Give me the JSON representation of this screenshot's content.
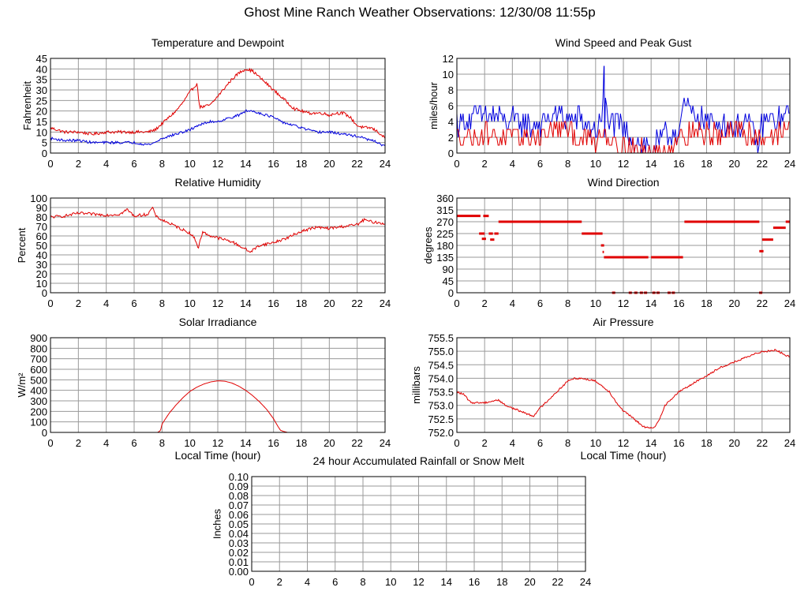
{
  "page": {
    "title": "Ghost Mine Ranch Weather Observations: 12/30/08 11:55p"
  },
  "colors": {
    "red": "#e00000",
    "blue": "#0000dd",
    "grid": "#9a9a9a",
    "axis": "#000000"
  },
  "chart_data": [
    {
      "id": "temperature",
      "type": "line",
      "title": "Temperature and Dewpoint",
      "xlabel": "",
      "ylabel": "Fahrenheit",
      "xlim": [
        0,
        24
      ],
      "ylim": [
        0,
        45
      ],
      "xticks": [
        "0",
        "2",
        "4",
        "6",
        "8",
        "10",
        "12",
        "14",
        "16",
        "18",
        "20",
        "22",
        "24"
      ],
      "yticks": [
        "0",
        "5",
        "10",
        "15",
        "20",
        "25",
        "30",
        "35",
        "40",
        "45"
      ],
      "series": [
        {
          "name": "Temperature",
          "color": "red",
          "x": [
            0,
            0.5,
            1,
            2,
            3,
            4,
            5,
            6,
            7,
            7.5,
            8,
            8.5,
            9,
            9.5,
            10,
            10.5,
            10.7,
            11,
            11.5,
            12,
            12.5,
            13,
            13.5,
            14,
            14.5,
            15,
            15.5,
            16,
            16.5,
            17,
            17.5,
            18,
            18.5,
            19,
            19.5,
            20,
            20.5,
            21,
            21.5,
            22,
            22.5,
            23,
            23.5,
            24
          ],
          "y": [
            12,
            11,
            10,
            10,
            9,
            10,
            10,
            10,
            10,
            11,
            14,
            17,
            20,
            24,
            29,
            33,
            22,
            22,
            23,
            27,
            31,
            35,
            38,
            40,
            39,
            36,
            33,
            30,
            27,
            24,
            21,
            20,
            19,
            19,
            19,
            18,
            19,
            19,
            17,
            13,
            12,
            12,
            10,
            7
          ],
          "noise": 0.7
        },
        {
          "name": "Dewpoint",
          "color": "blue",
          "x": [
            0,
            1,
            2,
            3,
            4,
            5,
            6,
            7,
            7.5,
            8,
            8.5,
            9,
            9.5,
            10,
            10.5,
            11,
            11.5,
            12,
            12.5,
            13,
            13.5,
            14,
            14.5,
            15,
            15.5,
            16,
            16.5,
            17,
            17.5,
            18,
            19,
            20,
            21,
            22,
            23,
            23.5,
            24
          ],
          "y": [
            7,
            6,
            6,
            5,
            5,
            5,
            5,
            4,
            5,
            7,
            8,
            9,
            10,
            11,
            13,
            14,
            15,
            15,
            16,
            17,
            18,
            20,
            20,
            19,
            18,
            17,
            15,
            14,
            13,
            12,
            10,
            10,
            9,
            8,
            6,
            5,
            3
          ],
          "noise": 0.6
        }
      ]
    },
    {
      "id": "wind-speed",
      "type": "line",
      "title": "Wind Speed and Peak Gust",
      "xlabel": "",
      "ylabel": "miles/hour",
      "xlim": [
        0,
        24
      ],
      "ylim": [
        0,
        12
      ],
      "xticks": [
        "0",
        "2",
        "4",
        "6",
        "8",
        "10",
        "12",
        "14",
        "16",
        "18",
        "20",
        "22",
        "24"
      ],
      "yticks": [
        "0",
        "2",
        "4",
        "6",
        "8",
        "10",
        "12"
      ],
      "series": [
        {
          "name": "Peak Gust",
          "color": "blue",
          "x": [
            0,
            1,
            2,
            3,
            4,
            5,
            6,
            7,
            8,
            9,
            10,
            10.5,
            10.6,
            10.8,
            11,
            12,
            13,
            14,
            15,
            16,
            16.5,
            17,
            18,
            19,
            20,
            21,
            21.8,
            22,
            23,
            24
          ],
          "y": [
            4,
            4,
            5,
            4.5,
            4,
            3.5,
            3.5,
            5,
            4.5,
            4,
            3,
            4,
            11,
            5,
            4,
            3,
            1.5,
            0.5,
            2,
            3,
            6,
            5,
            4,
            4,
            3.5,
            4,
            1,
            4,
            4,
            5
          ],
          "mode": "jitter",
          "step": 0.09,
          "amp": 1.6
        },
        {
          "name": "Wind Speed",
          "color": "red",
          "x": [
            0,
            1,
            2,
            3,
            4,
            5,
            6,
            7,
            8,
            9,
            10,
            10.6,
            11,
            12,
            13,
            14,
            15,
            16,
            17,
            18,
            19,
            20,
            21,
            22,
            23,
            24
          ],
          "y": [
            2,
            2,
            2.5,
            2,
            2,
            2,
            2,
            3,
            3,
            2,
            1.5,
            3,
            2,
            1,
            0.5,
            0,
            0.5,
            2,
            3,
            2.5,
            2.5,
            2.5,
            2.5,
            2,
            2.5,
            3
          ],
          "mode": "jitter",
          "step": 0.09,
          "amp": 1.4
        }
      ]
    },
    {
      "id": "humidity",
      "type": "line",
      "title": "Relative Humidity",
      "xlabel": "",
      "ylabel": "Percent",
      "xlim": [
        0,
        24
      ],
      "ylim": [
        0,
        100
      ],
      "xticks": [
        "0",
        "2",
        "4",
        "6",
        "8",
        "10",
        "12",
        "14",
        "16",
        "18",
        "20",
        "22",
        "24"
      ],
      "yticks": [
        "0",
        "10",
        "20",
        "30",
        "40",
        "50",
        "60",
        "70",
        "80",
        "90",
        "100"
      ],
      "series": [
        {
          "name": "Relative Humidity",
          "color": "red",
          "x": [
            0,
            1,
            2,
            3,
            4,
            5,
            5.5,
            6,
            7,
            7.3,
            7.6,
            8,
            9,
            10,
            10.4,
            10.6,
            10.9,
            11.5,
            12,
            13,
            13.5,
            14,
            14.3,
            15,
            16,
            17,
            18,
            19,
            20,
            21,
            22,
            22.5,
            23,
            24
          ],
          "y": [
            80,
            81,
            84,
            83,
            82,
            83,
            88,
            81,
            83,
            90,
            80,
            77,
            70,
            63,
            56,
            47,
            64,
            60,
            58,
            54,
            50,
            46,
            43,
            50,
            53,
            58,
            65,
            69,
            68,
            70,
            72,
            77,
            75,
            73
          ],
          "noise": 1.5
        }
      ]
    },
    {
      "id": "wind-direction",
      "type": "scatter",
      "title": "Wind Direction",
      "xlabel": "",
      "ylabel": "degrees",
      "xlim": [
        0,
        24
      ],
      "ylim": [
        0,
        360
      ],
      "xticks": [
        "0",
        "2",
        "4",
        "6",
        "8",
        "10",
        "12",
        "14",
        "16",
        "18",
        "20",
        "22",
        "24"
      ],
      "yticks": [
        "0",
        "45",
        "90",
        "135",
        "180",
        "225",
        "270",
        "315",
        "360"
      ],
      "segments": [
        {
          "x1": 0,
          "x2": 1.7,
          "y": 292
        },
        {
          "x1": 1.9,
          "x2": 2.3,
          "y": 292
        },
        {
          "x1": 1.6,
          "x2": 2.0,
          "y": 225
        },
        {
          "x1": 1.8,
          "x2": 2.1,
          "y": 205
        },
        {
          "x1": 2.3,
          "x2": 2.6,
          "y": 225
        },
        {
          "x1": 2.4,
          "x2": 2.7,
          "y": 202
        },
        {
          "x1": 2.7,
          "x2": 3.0,
          "y": 225
        },
        {
          "x1": 3.0,
          "x2": 9.0,
          "y": 270
        },
        {
          "x1": 9.0,
          "x2": 10.5,
          "y": 225
        },
        {
          "x1": 10.5,
          "x2": 10.6,
          "y": 155
        },
        {
          "x1": 10.6,
          "x2": 13.8,
          "y": 135
        },
        {
          "x1": 14.0,
          "x2": 16.3,
          "y": 135
        },
        {
          "x1": 16.4,
          "x2": 21.8,
          "y": 270
        },
        {
          "x1": 21.8,
          "x2": 22.1,
          "y": 158
        },
        {
          "x1": 22.0,
          "x2": 22.8,
          "y": 202
        },
        {
          "x1": 22.8,
          "x2": 23.7,
          "y": 247
        },
        {
          "x1": 23.7,
          "x2": 24.0,
          "y": 270
        }
      ],
      "points": [
        {
          "x": 11.3,
          "y": 0
        },
        {
          "x": 12.5,
          "y": 0
        },
        {
          "x": 12.9,
          "y": 0
        },
        {
          "x": 13.3,
          "y": 0
        },
        {
          "x": 13.6,
          "y": 0
        },
        {
          "x": 14.2,
          "y": 0
        },
        {
          "x": 14.5,
          "y": 0
        },
        {
          "x": 15.3,
          "y": 0
        },
        {
          "x": 15.6,
          "y": 0
        },
        {
          "x": 21.9,
          "y": 0
        },
        {
          "x": 10.5,
          "y": 180
        }
      ]
    },
    {
      "id": "solar",
      "type": "line",
      "title": "Solar Irradiance",
      "xlabel": "Local Time (hour)",
      "ylabel": "W/m²",
      "xlim": [
        0,
        24
      ],
      "ylim": [
        0,
        900
      ],
      "xticks": [
        "0",
        "2",
        "4",
        "6",
        "8",
        "10",
        "12",
        "14",
        "16",
        "18",
        "20",
        "22",
        "24"
      ],
      "yticks": [
        "0",
        "100",
        "200",
        "300",
        "400",
        "500",
        "600",
        "700",
        "800",
        "900"
      ],
      "series": [
        {
          "name": "Solar Irradiance",
          "color": "red",
          "x": [
            0,
            7.7,
            7.9,
            8,
            8.5,
            9,
            9.5,
            10,
            10.5,
            11,
            11.5,
            12,
            12.5,
            13,
            13.5,
            14,
            14.5,
            15,
            15.5,
            16,
            16.3,
            16.5,
            16.7,
            17,
            24
          ],
          "y": [
            0,
            0,
            20,
            80,
            180,
            260,
            330,
            390,
            430,
            460,
            480,
            490,
            487,
            470,
            440,
            400,
            350,
            290,
            220,
            130,
            60,
            20,
            10,
            0,
            0
          ],
          "noise": 0
        }
      ]
    },
    {
      "id": "pressure",
      "type": "line",
      "title": "Air Pressure",
      "xlabel": "Local Time (hour)",
      "ylabel": "millibars",
      "xlim": [
        0,
        24
      ],
      "ylim": [
        752.0,
        755.5
      ],
      "xticks": [
        "0",
        "2",
        "4",
        "6",
        "8",
        "10",
        "12",
        "14",
        "16",
        "18",
        "20",
        "22",
        "24"
      ],
      "yticks": [
        "752.0",
        "752.5",
        "753.0",
        "753.5",
        "754.0",
        "754.5",
        "755.0",
        "755.5"
      ],
      "series": [
        {
          "name": "Air Pressure",
          "color": "red",
          "x": [
            0,
            0.5,
            1,
            2,
            3,
            3.5,
            4,
            5,
            5.5,
            6,
            7,
            8,
            8.5,
            9,
            10,
            10.5,
            11,
            11.5,
            12,
            12.5,
            13,
            13.5,
            14,
            14.3,
            14.6,
            15,
            16,
            17,
            18,
            19,
            20,
            21,
            21.5,
            22,
            22.3,
            23,
            23.5,
            24
          ],
          "y": [
            753.5,
            753.4,
            753.1,
            753.1,
            753.2,
            753.0,
            752.9,
            752.7,
            752.6,
            752.9,
            753.4,
            753.9,
            754.0,
            754.0,
            753.9,
            753.7,
            753.5,
            753.1,
            752.8,
            752.6,
            752.4,
            752.2,
            752.15,
            752.2,
            752.5,
            753.0,
            753.5,
            753.8,
            754.1,
            754.4,
            754.6,
            754.8,
            754.9,
            755.0,
            755.0,
            755.05,
            754.9,
            754.8
          ],
          "noise": 0.035
        }
      ]
    },
    {
      "id": "rainfall",
      "type": "line",
      "title": "24 hour Accumulated Rainfall or Snow Melt",
      "xlabel": "",
      "ylabel": "Inches",
      "xlim": [
        0,
        24
      ],
      "ylim": [
        0,
        0.1
      ],
      "xticks": [
        "0",
        "2",
        "4",
        "6",
        "8",
        "10",
        "12",
        "14",
        "16",
        "18",
        "20",
        "22",
        "24"
      ],
      "yticks": [
        "0.00",
        "0.01",
        "0.02",
        "0.03",
        "0.04",
        "0.05",
        "0.06",
        "0.07",
        "0.08",
        "0.09",
        "0.10"
      ],
      "series": [
        {
          "name": "Rainfall",
          "color": "red",
          "x": [
            0,
            24
          ],
          "y": [
            0,
            0
          ],
          "noise": 0
        }
      ]
    }
  ]
}
